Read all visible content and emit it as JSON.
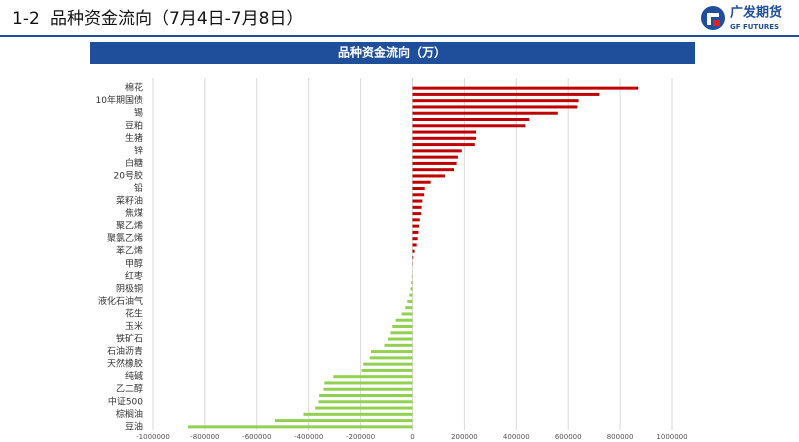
{
  "header": {
    "section": "1-2",
    "title": "品种资金流向（7月4日-7月8日）"
  },
  "logo": {
    "name": "广发期货",
    "english": "GF FUTURES"
  },
  "chart_data": {
    "type": "bar",
    "orientation": "horizontal",
    "title": "品种资金流向（万）",
    "categories": [
      "棉花",
      null,
      "10年期国债",
      null,
      "锡",
      null,
      "豆粕",
      null,
      "生猪",
      null,
      "锌",
      null,
      "白糖",
      null,
      "20号胶",
      null,
      "铅",
      null,
      "菜籽油",
      null,
      "焦煤",
      null,
      "聚乙烯",
      null,
      "聚氯乙烯",
      null,
      "苯乙烯",
      null,
      "甲醇",
      null,
      "红枣",
      null,
      "阴极铜",
      null,
      "液化石油气",
      null,
      "花生",
      null,
      "玉米",
      null,
      "铁矿石",
      null,
      "石油沥青",
      null,
      "天然橡胶",
      null,
      "纯碱",
      null,
      "乙二醇",
      null,
      "中证500",
      null,
      "棕榈油",
      null,
      "豆油"
    ],
    "values": [
      870000,
      720000,
      640000,
      635000,
      560000,
      450000,
      435000,
      245000,
      245000,
      240000,
      190000,
      175000,
      170000,
      160000,
      125000,
      70000,
      47000,
      45000,
      38000,
      35000,
      33000,
      28000,
      25000,
      23000,
      20000,
      16000,
      8000,
      3000,
      1000,
      -500,
      -3000,
      -5000,
      -8000,
      -12000,
      -20000,
      -28000,
      -42000,
      -65000,
      -78000,
      -85000,
      -95000,
      -108000,
      -160000,
      -165000,
      -190000,
      -196000,
      -305000,
      -340000,
      -343000,
      -360000,
      -362000,
      -375000,
      -420000,
      -530000,
      -865000
    ],
    "colors": {
      "positive": "#c00000",
      "negative": "#92d050"
    },
    "xlim": [
      -1000000,
      1000000
    ],
    "xticks": [
      -1000000,
      -800000,
      -600000,
      -400000,
      -200000,
      0,
      200000,
      400000,
      600000,
      800000,
      1000000
    ],
    "grid": true
  }
}
